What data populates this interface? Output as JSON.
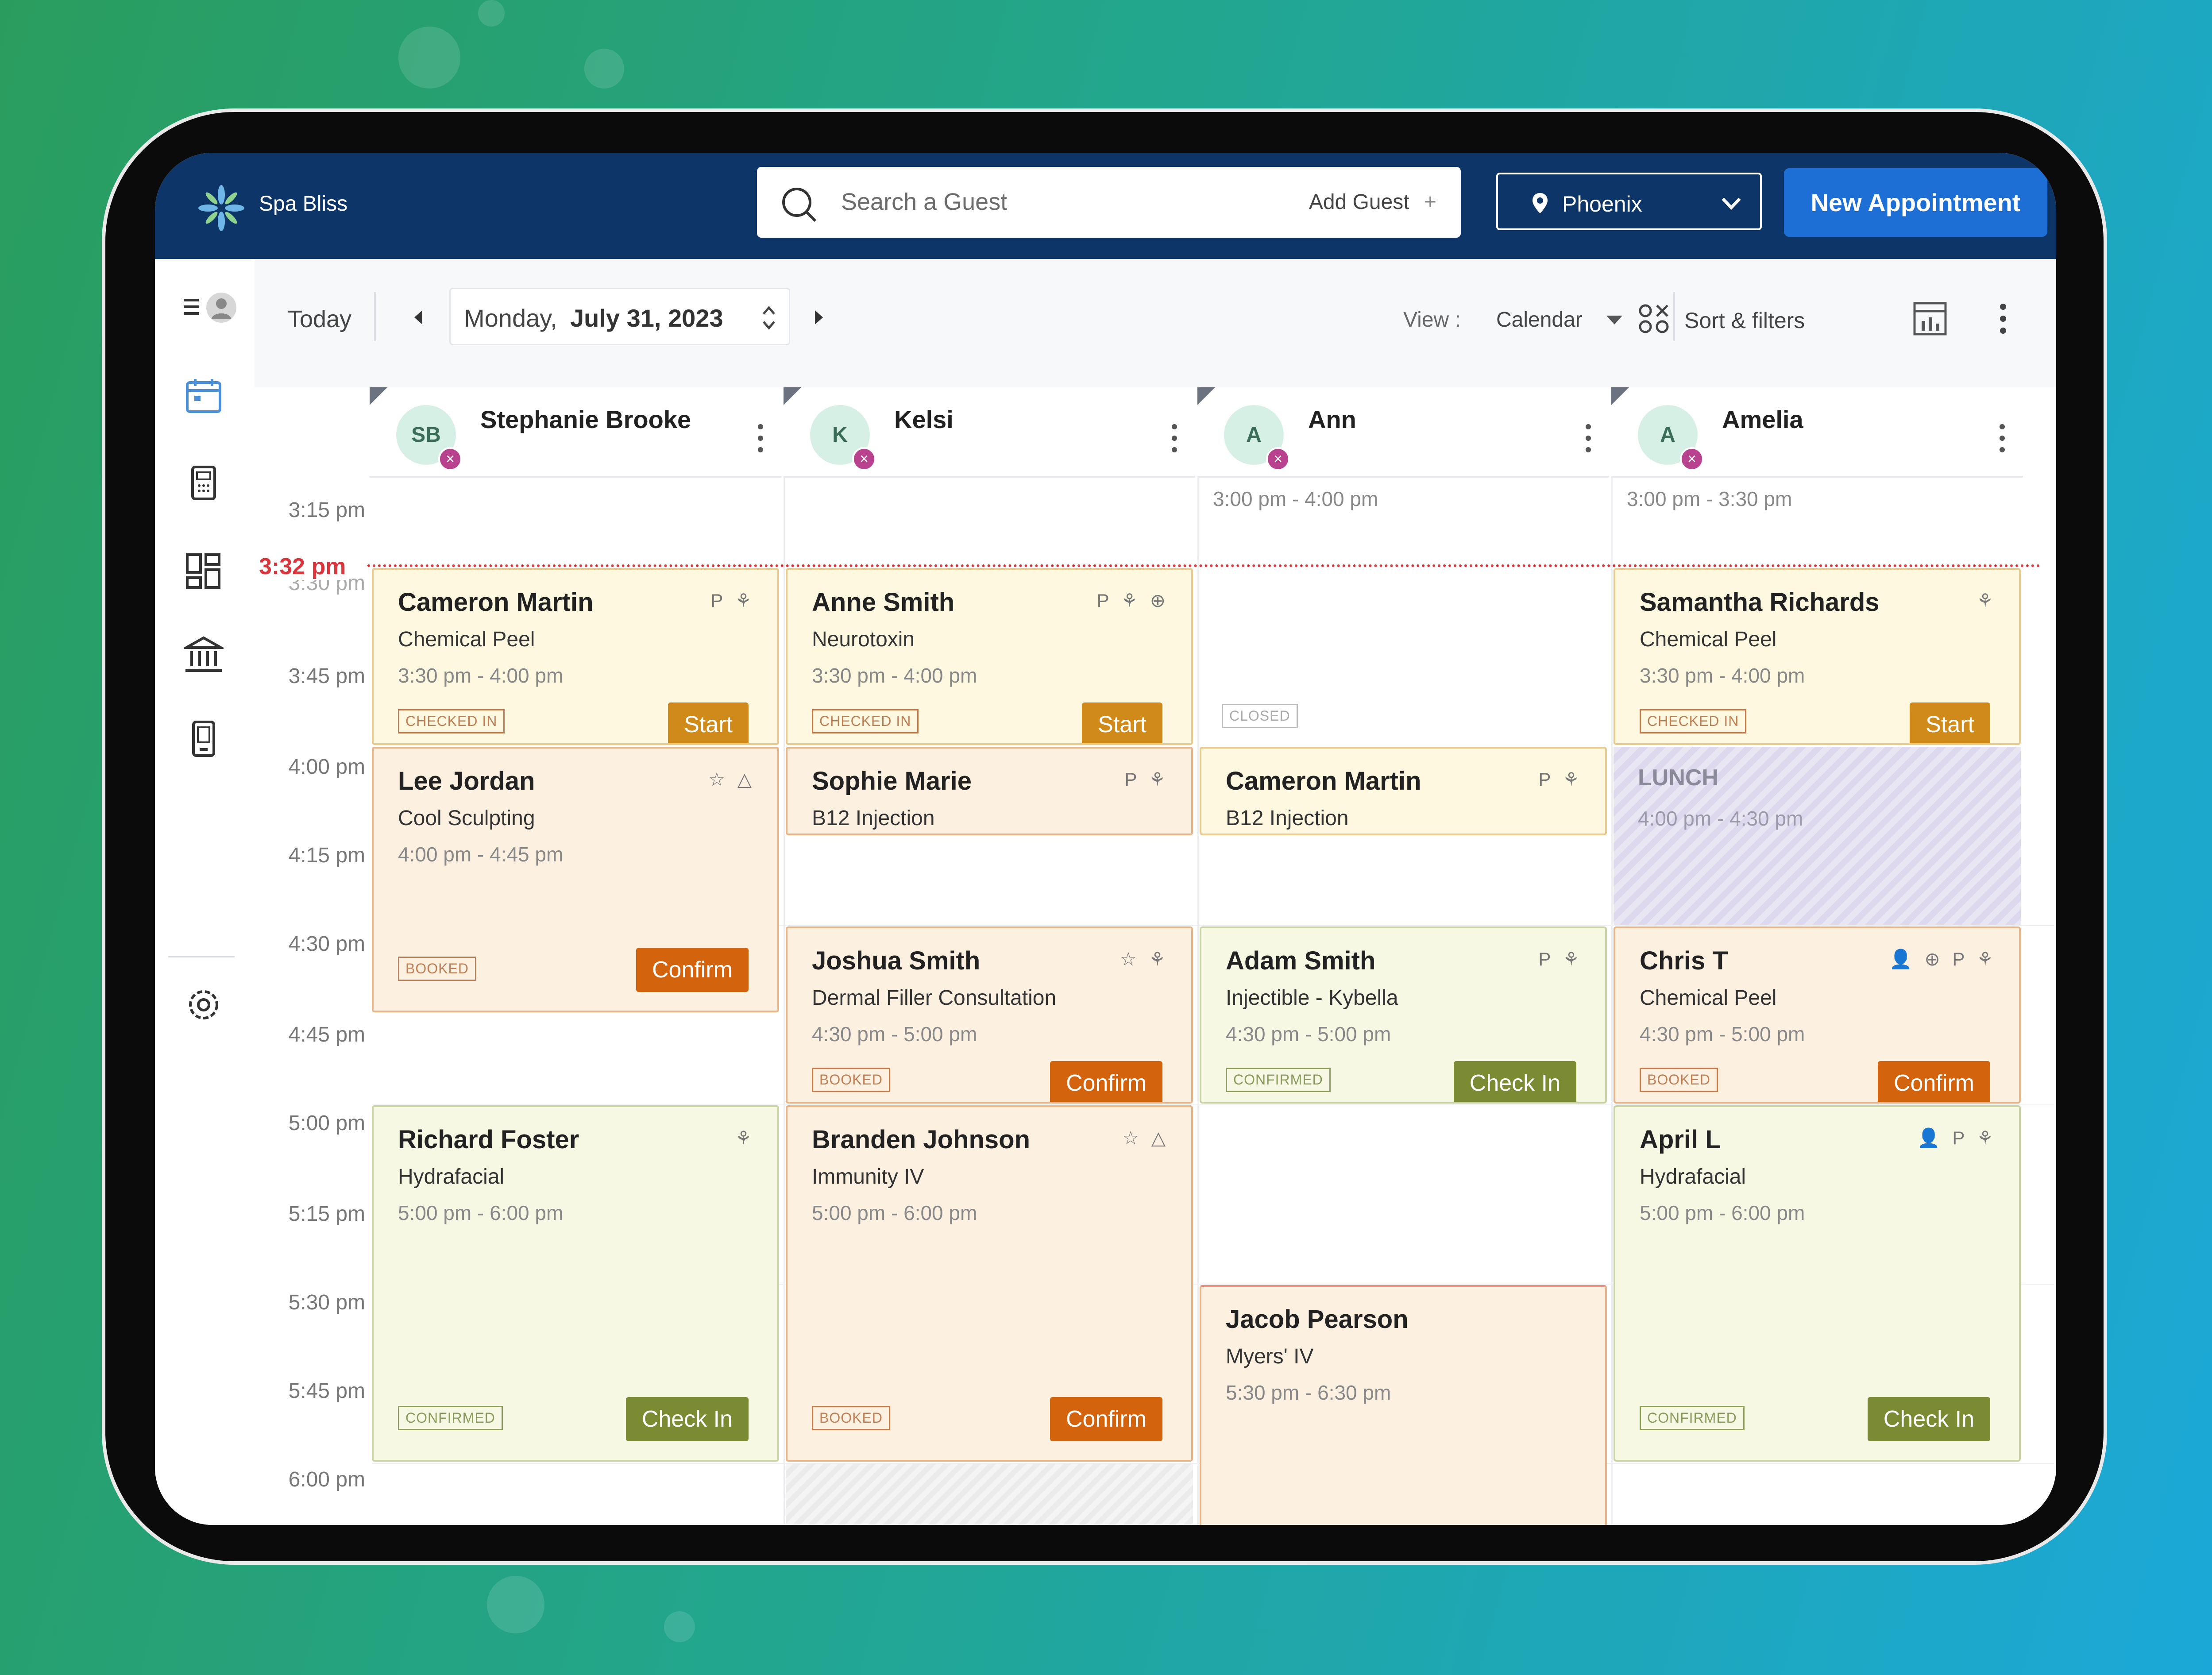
{
  "app": {
    "brand": "Spa Bliss"
  },
  "header": {
    "search_placeholder": "Search a Guest",
    "add_guest": "Add Guest",
    "location": "Phoenix",
    "new_appointment": "New Appointment"
  },
  "toolbar": {
    "today": "Today",
    "date_weekday": "Monday,",
    "date_main": "July 31, 2023",
    "view_label": "View :",
    "view_value": "Calendar",
    "sort_filters": "Sort & filters"
  },
  "providers": [
    {
      "initials": "SB",
      "name": "Stephanie Brooke"
    },
    {
      "initials": "K",
      "name": "Kelsi"
    },
    {
      "initials": "A",
      "name": "Ann"
    },
    {
      "initials": "A",
      "name": "Amelia"
    }
  ],
  "times": [
    "3:15 pm",
    "3:30 pm",
    "3:45 pm",
    "4:00 pm",
    "4:15 pm",
    "4:30 pm",
    "4:45 pm",
    "5:00 pm",
    "5:15 pm",
    "5:30 pm",
    "5:45 pm",
    "6:00 pm"
  ],
  "now_label": "3:32 pm",
  "above_fold": {
    "ann": "3:00 pm - 4:00 pm",
    "amelia": "3:00 pm - 3:30 pm"
  },
  "appointments": {
    "a1": {
      "name": "Cameron Martin",
      "service": "Chemical Peel",
      "time": "3:30 pm - 4:00 pm",
      "status": "CHECKED IN",
      "action": "Start",
      "icons": "P ⚘"
    },
    "a2": {
      "name": "Anne Smith",
      "service": "Neurotoxin",
      "time": "3:30 pm - 4:00 pm",
      "status": "CHECKED IN",
      "action": "Start",
      "icons": "P ⚘ ⊕"
    },
    "a3": {
      "name": "Samantha Richards",
      "service": "Chemical Peel",
      "time": "3:30 pm - 4:00 pm",
      "status": "CHECKED IN",
      "action": "Start",
      "icons": "⚘"
    },
    "a4": {
      "name": "Lee Jordan",
      "service": "Cool Sculpting",
      "time": "4:00 pm - 4:45 pm",
      "status": "BOOKED",
      "action": "Confirm",
      "icons": "☆ △"
    },
    "a5": {
      "name": "Sophie Marie",
      "service": "B12 Injection",
      "icons": "P ⚘"
    },
    "a6": {
      "name": "Cameron Martin",
      "service": "B12 Injection",
      "icons": "P ⚘"
    },
    "a7": {
      "name": "Joshua Smith",
      "service": "Dermal Filler Consultation",
      "time": "4:30 pm - 5:00 pm",
      "status": "BOOKED",
      "action": "Confirm",
      "icons": "☆ ⚘"
    },
    "a8": {
      "name": "Adam Smith",
      "service": "Injectible - Kybella",
      "time": "4:30 pm - 5:00 pm",
      "status": "CONFIRMED",
      "action": "Check In",
      "icons": "P ⚘"
    },
    "a9": {
      "name": "Chris T",
      "service": "Chemical Peel",
      "time": "4:30 pm - 5:00 pm",
      "status": "BOOKED",
      "action": "Confirm",
      "icons": "👤 ⊕ P ⚘"
    },
    "a10": {
      "name": "Richard Foster",
      "service": "Hydrafacial",
      "time": "5:00 pm - 6:00 pm",
      "status": "CONFIRMED",
      "action": "Check In",
      "icons": "⚘"
    },
    "a11": {
      "name": "Branden Johnson",
      "service": "Immunity IV",
      "time": "5:00 pm - 6:00 pm",
      "status": "BOOKED",
      "action": "Confirm",
      "icons": "☆ △"
    },
    "a12": {
      "name": "April L",
      "service": "Hydrafacial",
      "time": "5:00 pm - 6:00 pm",
      "status": "CONFIRMED",
      "action": "Check In",
      "icons": "👤 P ⚘"
    },
    "a13": {
      "name": "Jacob Pearson",
      "service": "Myers' IV",
      "time": "5:30 pm - 6:30 pm"
    }
  },
  "closed_label": "CLOSED",
  "lunch": {
    "title": "LUNCH",
    "time": "4:00 pm - 4:30 pm"
  },
  "colors": {
    "brand_navy": "#0e3568",
    "accent_blue": "#1d6fd6",
    "now_red": "#d9363e",
    "confirm_orange": "#d4630d",
    "checkin_green": "#7b8b34"
  }
}
